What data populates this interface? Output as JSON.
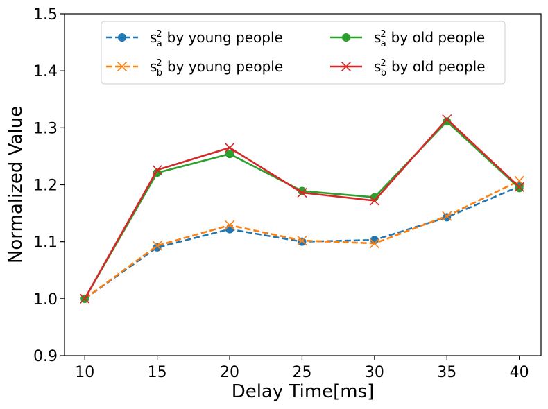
{
  "chart_data": {
    "type": "line",
    "xlabel": "Delay Time[ms]",
    "ylabel": "Normalized Value",
    "x": [
      10,
      15,
      20,
      25,
      30,
      35,
      40
    ],
    "xticks": [
      "10",
      "15",
      "20",
      "25",
      "30",
      "35",
      "40"
    ],
    "ylim": [
      0.9,
      1.5
    ],
    "yticks": [
      "0.9",
      "1.0",
      "1.1",
      "1.2",
      "1.3",
      "1.4",
      "1.5"
    ],
    "grid": false,
    "legend_position": "top",
    "series": [
      {
        "name": "by young people",
        "symbol": "s",
        "subscript": "a",
        "superscript": "2",
        "color": "#1f77b4",
        "linestyle": "dashed",
        "marker": "circle",
        "values": [
          1.0,
          1.09,
          1.122,
          1.1,
          1.103,
          1.143,
          1.197
        ]
      },
      {
        "name": "by young people",
        "symbol": "s",
        "subscript": "b",
        "superscript": "2",
        "color": "#ff7f0e",
        "linestyle": "dashed",
        "marker": "x",
        "values": [
          1.0,
          1.093,
          1.129,
          1.102,
          1.097,
          1.145,
          1.207
        ]
      },
      {
        "name": "by old people",
        "symbol": "s",
        "subscript": "a",
        "superscript": "2",
        "color": "#2ca02c",
        "linestyle": "solid",
        "marker": "circle",
        "values": [
          1.0,
          1.221,
          1.254,
          1.189,
          1.178,
          1.311,
          1.194
        ]
      },
      {
        "name": "by old people",
        "symbol": "s",
        "subscript": "b",
        "superscript": "2",
        "color": "#d62728",
        "linestyle": "solid",
        "marker": "x",
        "values": [
          1.0,
          1.226,
          1.265,
          1.186,
          1.172,
          1.315,
          1.196
        ]
      }
    ]
  }
}
